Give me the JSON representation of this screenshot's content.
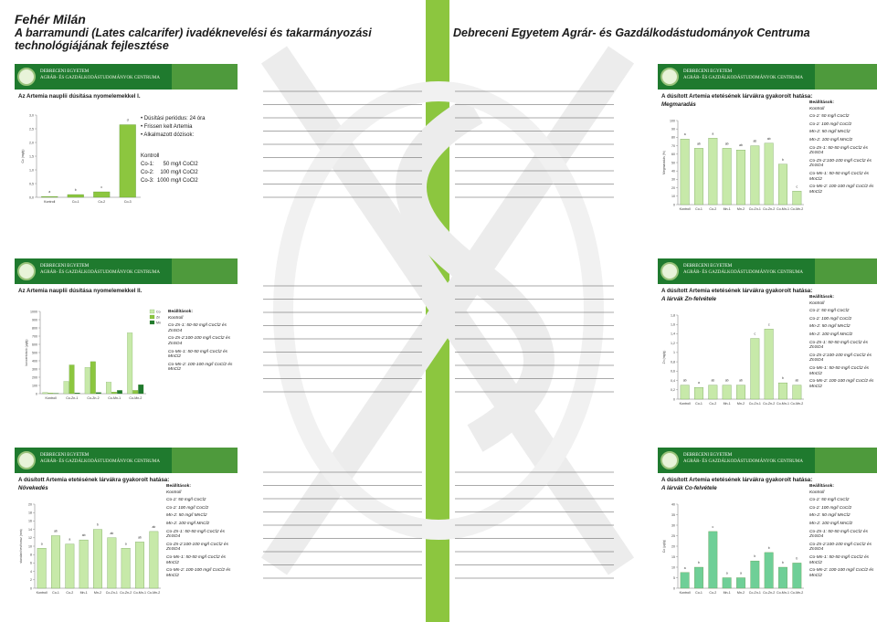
{
  "left_title": {
    "line1": "Fehér Milán",
    "line2": "A barramundi (Lates calcarifer) ivadéknevelési és takarmányozási",
    "line3": "technológiájának fejlesztése"
  },
  "right_title": "Debreceni Egyetem Agrár- és Gazdálkodástudományok Centruma",
  "banner": {
    "line1": "DEBRECENI EGYETEM",
    "line2": "AGRÁR- ÉS GAZDÁLKODÁSTUDOMÁNYOK CENTRUMA"
  },
  "colors": {
    "green": "#8cc63f",
    "light_green": "#c7e9a9",
    "dark_green": "#1f7a2e",
    "teal": "#6fcf97"
  },
  "slides": [
    {
      "title": "Az Artemia nauplii dúsítása nyomelemekkel I.",
      "subtitle": "",
      "bullets": [
        "Dúsítási periódus: 24 óra",
        "Frissen kelt Artemia",
        "Alkalmazott dózisok:"
      ],
      "dosage_header": "Kontroll",
      "dosages": [
        "Co-1:      50 mg/l CoCl2",
        "Co-2:    100 mg/l CoCl2",
        "Co-3:  1000 mg/l CoCl2"
      ],
      "chart_data": {
        "type": "bar",
        "categories": [
          "Kontroll",
          "Co-1",
          "Co-2",
          "Co-3"
        ],
        "values": [
          0.03,
          0.1,
          0.2,
          2.65
        ],
        "ylabel": "Co (mg/g)",
        "ylim": [
          0,
          3
        ],
        "yticks": [
          "0,0",
          "0,5",
          "1,0",
          "1,5",
          "2,0",
          "2,5",
          "3,0"
        ],
        "letters": [
          "a",
          "b",
          "c",
          "d"
        ]
      }
    },
    {
      "title": "A dúsított Artemia etetésének lárvákra gyakorolt hatása:",
      "subtitle": "Megmaradás",
      "legend_header": "Beállítások:",
      "legend": [
        "Kontroll",
        "Co-2: 50 mg/l CoCl2",
        "Co-2: 100 mg/l CoCl2",
        "Mn-2: 50 mg/l MnCl2",
        "Mn-2: 100 mg/l MnCl2",
        "Co-Zn-1: 50-50 mg/l CoCl2 és ZnSO4",
        "Co-Zn-2:100-100 mg/l CoCl2 és ZnSO4",
        "Co-Mn-1: 50-50 mg/l CoCl2 és MnCl2",
        "Co-Mn-2: 100-100 mg/l CoCl2 és MnCl2"
      ],
      "chart_data": {
        "type": "bar",
        "categories": [
          "Kontroll",
          "Co-1",
          "Co-2",
          "Mn-1",
          "Mn-2",
          "Co-Zn-1",
          "Co-Zn-2",
          "Co-Mn-1",
          "Co-Mn-2"
        ],
        "values": [
          78,
          67,
          79,
          67,
          65,
          70,
          73,
          48,
          16
        ],
        "ylabel": "Megmaradás (%)",
        "ylim": [
          0,
          100
        ],
        "yticks": [
          "0",
          "10",
          "20",
          "30",
          "40",
          "50",
          "60",
          "70",
          "80",
          "90",
          "100"
        ],
        "letters": [
          "a",
          "ab",
          "a",
          "ab",
          "ab",
          "ab",
          "ab",
          "b",
          "c"
        ]
      }
    },
    {
      "title": "Az Artemia nauplii dúsítása nyomelemekkel II.",
      "subtitle": "",
      "legend_header": "Beállítások:",
      "legend": [
        "Kontroll",
        "Co-Zn-1: 50-50 mg/l CoCl2 és ZnSO4",
        "Co-Zn-2:100-100 mg/l CoCl2 és ZnSO4",
        "Co-Mn-1: 50-50 mg/l CoCl2 és MnCl2",
        "Co-Mn-2: 100-100 mg/l CoCl2 és MnCl2"
      ],
      "chart_data": {
        "type": "bar",
        "categories": [
          "Kontroll",
          "Co-Zn-1",
          "Co-Zn-2",
          "Co-Mn-1",
          "Co-Mn-2"
        ],
        "series": [
          {
            "name": "Co",
            "values": [
              15,
              150,
              320,
              140,
              740
            ]
          },
          {
            "name": "Zn",
            "values": [
              8,
              350,
              390,
              20,
              40
            ]
          },
          {
            "name": "Mn",
            "values": [
              5,
              10,
              15,
              40,
              110
            ]
          }
        ],
        "ylabel": "koncentráció (µg/g)",
        "ylim": [
          0,
          1000
        ],
        "yticks": [
          "0",
          "100",
          "200",
          "300",
          "400",
          "500",
          "600",
          "700",
          "800",
          "900",
          "1000"
        ]
      }
    },
    {
      "title": "A dúsított Artemia etetésének lárvákra gyakorolt hatása:",
      "subtitle": "A lárvák Zn-felvétele",
      "legend_header": "Beállítások:",
      "legend": [
        "Kontroll",
        "Co-2: 50 mg/l CoCl2",
        "Co-2: 100 mg/l CoCl2",
        "Mn-2: 50 mg/l MnCl2",
        "Mn-2: 100 mg/l MnCl2",
        "Co-Zn-1: 50-50 mg/l CoCl2 és ZnSO4",
        "Co-Zn-2:100-100 mg/l CoCl2 és ZnSO4",
        "Co-Mn-1: 50-50 mg/l CoCl2 és MnCl2",
        "Co-Mn-2: 100-100 mg/l CoCl2 és MnCl2"
      ],
      "chart_data": {
        "type": "bar",
        "categories": [
          "Kontroll",
          "Co-1",
          "Co-2",
          "Mn-1",
          "Mn-2",
          "Co-Zn-1",
          "Co-Zn-2",
          "Co-Mn-1",
          "Co-Mn-2"
        ],
        "values": [
          0.3,
          0.25,
          0.3,
          0.3,
          0.3,
          1.3,
          1.5,
          0.35,
          0.3
        ],
        "ylabel": "Zn (mg/g)",
        "ylim": [
          0,
          1.8
        ],
        "yticks": [
          "0",
          "0,2",
          "0,4",
          "0,6",
          "0,8",
          "1",
          "1,2",
          "1,4",
          "1,6",
          "1,8"
        ],
        "letters": [
          "ab",
          "a",
          "ab",
          "ab",
          "ab",
          "c",
          "c",
          "b",
          "ab"
        ]
      }
    },
    {
      "title": "A dúsított Artemia etetésének lárvákra gyakorolt hatása:",
      "subtitle": "Növekedés",
      "legend_header": "Beállítások:",
      "legend": [
        "Kontroll",
        "Co-2: 50 mg/l CoCl2",
        "Co-2: 100 mg/l CoCl2",
        "Mn-2: 50 mg/l MnCl2",
        "Mn-2: 100 mg/l MnCl2",
        "Co-Zn-1: 50-50 mg/l CoCl2 és ZnSO4",
        "Co-Zn-2:100-100 mg/l CoCl2 és ZnSO4",
        "Co-Mn-1: 50-50 mg/l CoCl2 és MnCl2",
        "Co-Mn-2: 100-100 mg/l CoCl2 és MnCl2"
      ],
      "chart_data": {
        "type": "bar",
        "categories": [
          "Kontroll",
          "Co-1",
          "Co-2",
          "Mn-1",
          "Mn-2",
          "Co-Zn-1",
          "Co-Zn-2",
          "Co-Mn-1",
          "Co-Mn-2"
        ],
        "values": [
          9.5,
          12.5,
          10.5,
          11.5,
          14,
          12,
          9.5,
          11,
          13.5
        ],
        "ylabel": "standard testhossz (mm)",
        "ylim": [
          0,
          20
        ],
        "yticks": [
          "0",
          "2",
          "4",
          "6",
          "8",
          "10",
          "12",
          "14",
          "16",
          "18",
          "20"
        ],
        "letters": [
          "a",
          "ab",
          "a",
          "ab",
          "b",
          "ab",
          "a",
          "ab",
          "ab"
        ]
      }
    },
    {
      "title": "A dúsított Artemia etetésének lárvákra gyakorolt hatása:",
      "subtitle": "A lárvák Co-felvétele",
      "legend_header": "Beállítások:",
      "legend": [
        "Kontroll",
        "Co-2: 50 mg/l CoCl2",
        "Co-2: 100 mg/l CoCl2",
        "Mn-2: 50 mg/l MnCl2",
        "Mn-2: 100 mg/l MnCl2",
        "Co-Zn-1: 50-50 mg/l CoCl2 és ZnSO4",
        "Co-Zn-2:100-100 mg/l CoCl2 és ZnSO4",
        "Co-Mn-1: 50-50 mg/l CoCl2 és MnCl2",
        "Co-Mn-2: 100-100 mg/l CoCl2 és MnCl2"
      ],
      "chart_data": {
        "type": "bar",
        "categories": [
          "Kontroll",
          "Co-1",
          "Co-2",
          "Mn-1",
          "Mn-2",
          "Co-Zn-1",
          "Co-Zn-2",
          "Co-Mn-1",
          "Co-Mn-2"
        ],
        "values": [
          7.5,
          10,
          27,
          5,
          5,
          13,
          17,
          10,
          12
        ],
        "ylabel": "Co (µg/g)",
        "ylim": [
          0,
          40
        ],
        "yticks": [
          "0",
          "5",
          "10",
          "15",
          "20",
          "25",
          "30",
          "35",
          "40"
        ],
        "letters": [
          "a",
          "b",
          "c",
          "a",
          "a",
          "b",
          "b",
          "b",
          "b"
        ]
      }
    }
  ]
}
